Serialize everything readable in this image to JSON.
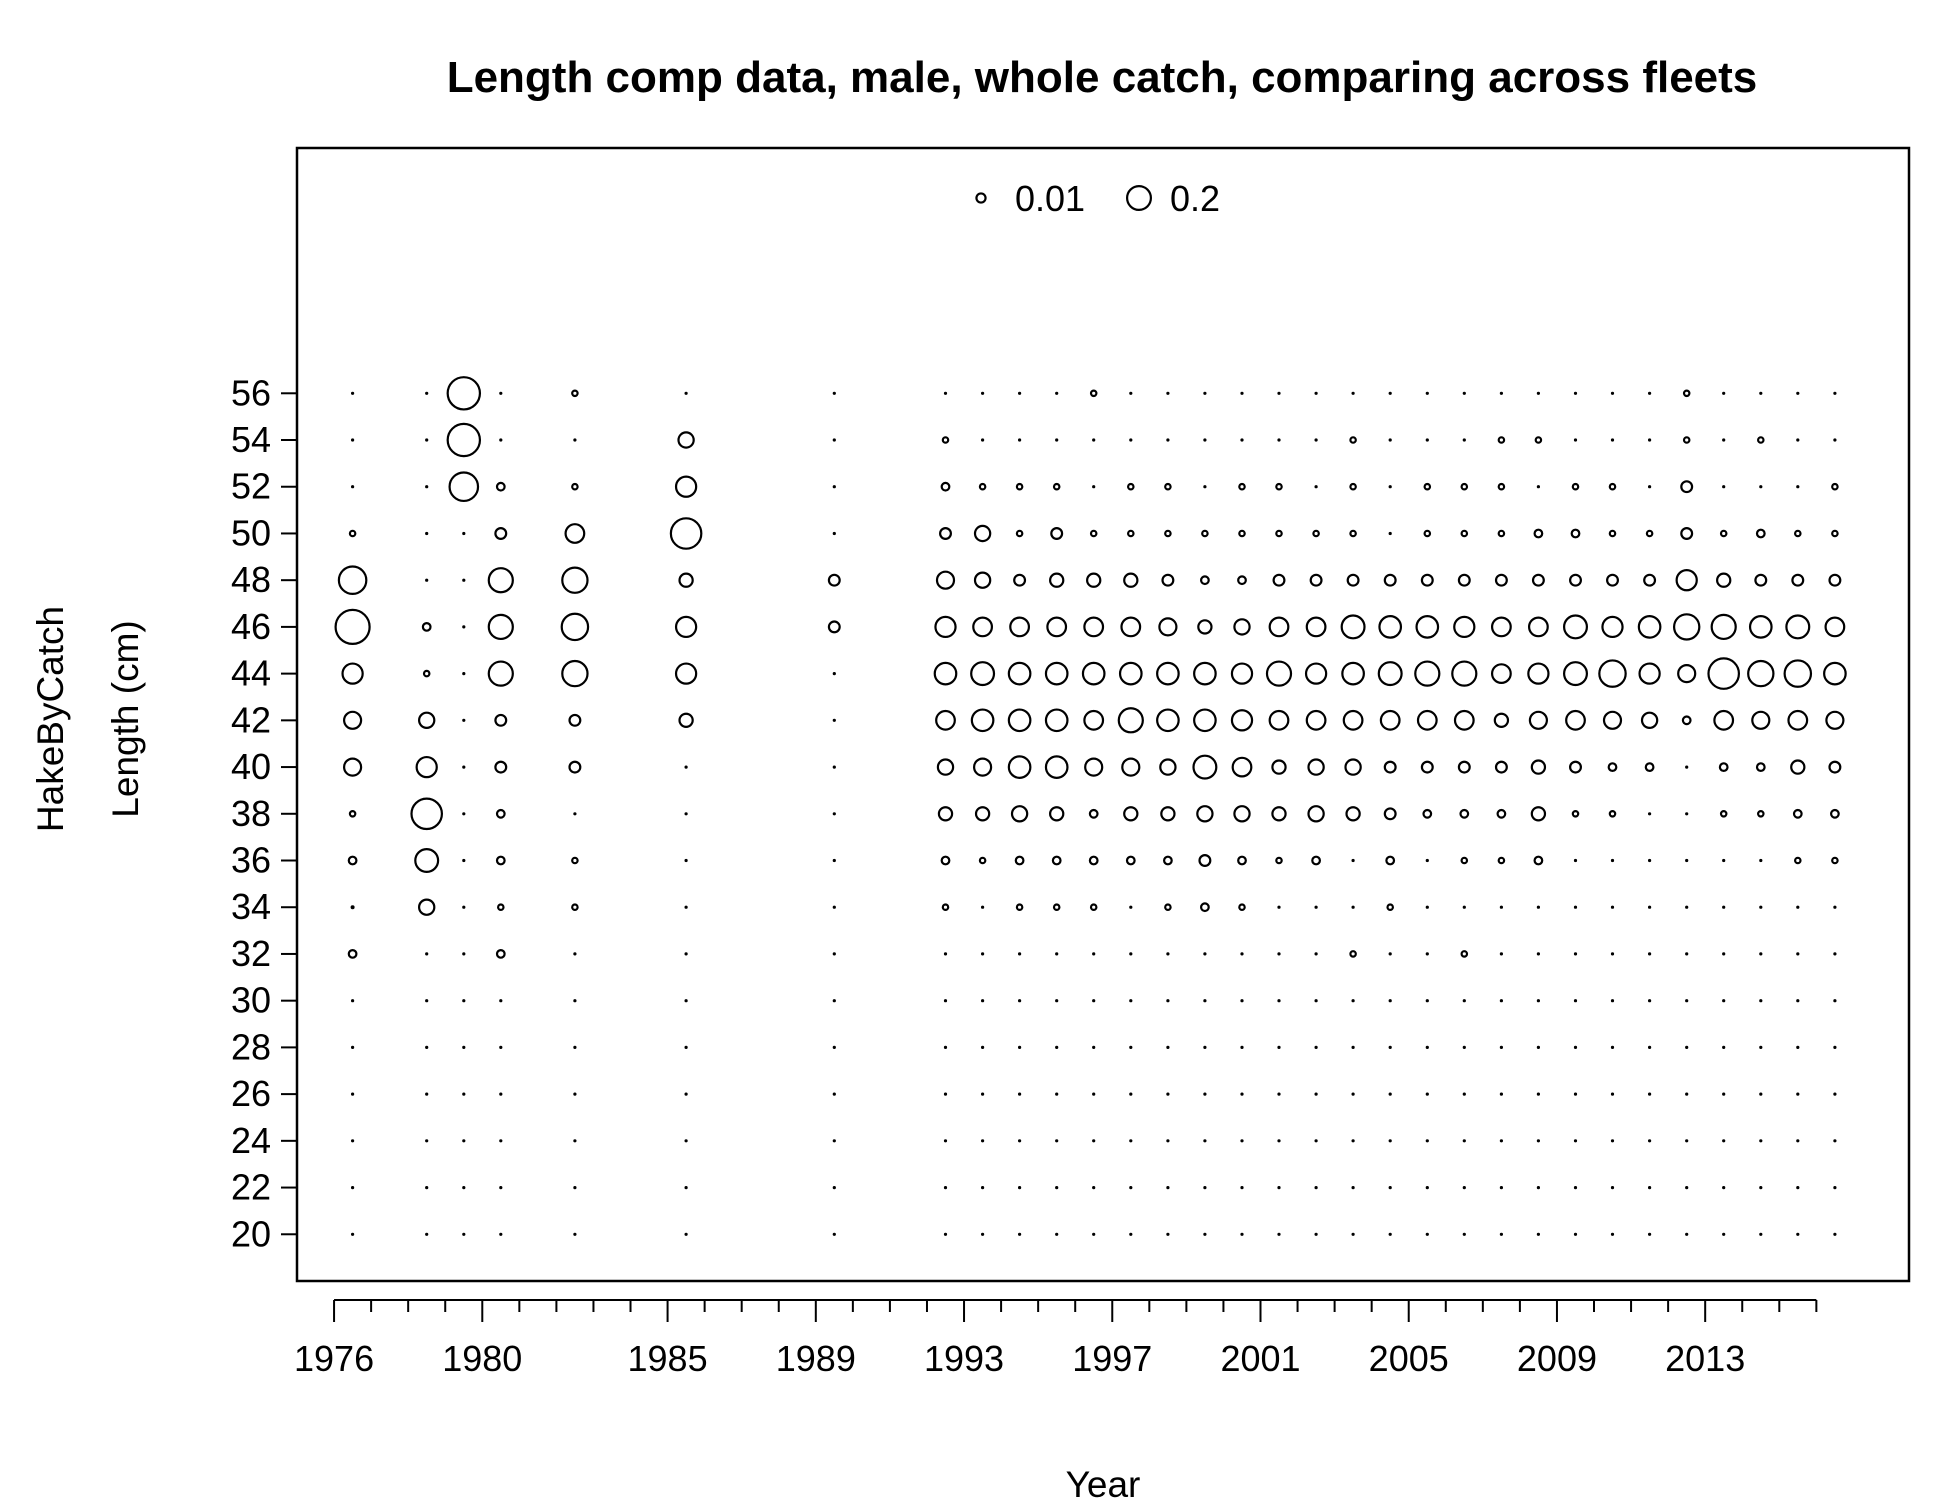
{
  "chart_data": {
    "type": "scatter",
    "subtype": "bubble",
    "title": "Length comp data, male, whole catch, comparing across fleets",
    "xlabel": "Year",
    "ylabel_fleet": "HakeByCatch",
    "ylabel": "Length (cm)",
    "x_tick_labels": [
      "1976",
      "1980",
      "1985",
      "1989",
      "1993",
      "1997",
      "2001",
      "2005",
      "2009",
      "2013"
    ],
    "y_tick_labels": [
      "20",
      "22",
      "24",
      "26",
      "28",
      "30",
      "32",
      "34",
      "36",
      "38",
      "40",
      "42",
      "44",
      "46",
      "48",
      "50",
      "52",
      "54",
      "56"
    ],
    "xlim": [
      1975,
      2018.5
    ],
    "ylim": [
      18,
      66.5
    ],
    "legend": {
      "position": "top-center",
      "entries": [
        "0.01",
        "0.2"
      ],
      "values": [
        0.01,
        0.2
      ]
    },
    "lengths": [
      20,
      22,
      24,
      26,
      28,
      30,
      32,
      34,
      36,
      38,
      40,
      42,
      44,
      46,
      48,
      50,
      52,
      54,
      56
    ],
    "years": [
      1976.5,
      1978.5,
      1979.5,
      1980.5,
      1982.5,
      1985.5,
      1989.5,
      1992.5,
      1993.5,
      1994.5,
      1995.5,
      1996.5,
      1997.5,
      1998.5,
      1999.5,
      2000.5,
      2001.5,
      2002.5,
      2003.5,
      2004.5,
      2005.5,
      2006.5,
      2007.5,
      2008.5,
      2009.5,
      2010.5,
      2011.5,
      2012.5,
      2013.5,
      2014.5,
      2015.5,
      2016.5
    ],
    "proportions": [
      [
        0.001,
        0.001,
        0.001,
        0.001,
        0.001,
        0.001,
        0.01,
        0.002,
        0.01,
        0.005,
        0.05,
        0.05,
        0.07,
        0.2,
        0.13,
        0.005,
        0.001,
        0.001,
        0.001
      ],
      [
        0.001,
        0.001,
        0.001,
        0.001,
        0.001,
        0.001,
        0.001,
        0.04,
        0.09,
        0.16,
        0.07,
        0.04,
        0.005,
        0.01,
        0.001,
        0.001,
        0.001,
        0.001,
        0.001
      ],
      [
        0.001,
        0.001,
        0.001,
        0.001,
        0.001,
        0.001,
        0.001,
        0.001,
        0.001,
        0.001,
        0.001,
        0.001,
        0.001,
        0.001,
        0.001,
        0.001,
        0.14,
        0.18,
        0.18
      ],
      [
        0.001,
        0.001,
        0.001,
        0.001,
        0.001,
        0.001,
        0.01,
        0.005,
        0.01,
        0.01,
        0.02,
        0.02,
        0.1,
        0.1,
        0.1,
        0.02,
        0.01,
        0.001,
        0.001
      ],
      [
        0.001,
        0.001,
        0.001,
        0.001,
        0.001,
        0.001,
        0.001,
        0.005,
        0.005,
        0.001,
        0.02,
        0.02,
        0.11,
        0.12,
        0.11,
        0.06,
        0.005,
        0.001,
        0.005
      ],
      [
        0.001,
        0.001,
        0.001,
        0.001,
        0.001,
        0.001,
        0.001,
        0.001,
        0.001,
        0.001,
        0.001,
        0.03,
        0.07,
        0.07,
        0.03,
        0.16,
        0.07,
        0.04,
        0.001
      ],
      [
        0.001,
        0.001,
        0.001,
        0.001,
        0.001,
        0.001,
        0.001,
        0.001,
        0.001,
        0.001,
        0.001,
        0.001,
        0.001,
        0.02,
        0.02,
        0.001,
        0.001,
        0.001,
        0.001
      ],
      [
        0.001,
        0.001,
        0.001,
        0.001,
        0.001,
        0.001,
        0.001,
        0.005,
        0.01,
        0.03,
        0.04,
        0.06,
        0.08,
        0.07,
        0.05,
        0.02,
        0.01,
        0.005,
        0.001
      ],
      [
        0.001,
        0.001,
        0.001,
        0.001,
        0.001,
        0.001,
        0.001,
        0.001,
        0.005,
        0.03,
        0.05,
        0.08,
        0.09,
        0.06,
        0.04,
        0.04,
        0.005,
        0.001,
        0.001
      ],
      [
        0.001,
        0.001,
        0.001,
        0.001,
        0.001,
        0.001,
        0.001,
        0.005,
        0.01,
        0.04,
        0.08,
        0.08,
        0.08,
        0.06,
        0.02,
        0.005,
        0.005,
        0.001,
        0.001
      ],
      [
        0.001,
        0.001,
        0.001,
        0.001,
        0.001,
        0.001,
        0.001,
        0.005,
        0.01,
        0.03,
        0.08,
        0.08,
        0.08,
        0.06,
        0.03,
        0.02,
        0.005,
        0.001,
        0.001
      ],
      [
        0.001,
        0.001,
        0.001,
        0.001,
        0.001,
        0.001,
        0.001,
        0.005,
        0.01,
        0.01,
        0.05,
        0.06,
        0.08,
        0.06,
        0.03,
        0.005,
        0.001,
        0.001,
        0.005
      ],
      [
        0.001,
        0.001,
        0.001,
        0.001,
        0.001,
        0.001,
        0.001,
        0.001,
        0.01,
        0.03,
        0.05,
        0.1,
        0.08,
        0.06,
        0.03,
        0.005,
        0.005,
        0.001,
        0.001
      ],
      [
        0.001,
        0.001,
        0.001,
        0.001,
        0.001,
        0.001,
        0.001,
        0.005,
        0.01,
        0.03,
        0.04,
        0.08,
        0.08,
        0.05,
        0.02,
        0.005,
        0.005,
        0.001,
        0.001
      ],
      [
        0.001,
        0.001,
        0.001,
        0.001,
        0.001,
        0.001,
        0.001,
        0.01,
        0.02,
        0.04,
        0.09,
        0.08,
        0.08,
        0.03,
        0.01,
        0.005,
        0.001,
        0.001,
        0.001
      ],
      [
        0.001,
        0.001,
        0.001,
        0.001,
        0.001,
        0.001,
        0.001,
        0.005,
        0.01,
        0.04,
        0.06,
        0.07,
        0.07,
        0.04,
        0.01,
        0.005,
        0.005,
        0.001,
        0.001
      ],
      [
        0.001,
        0.001,
        0.001,
        0.001,
        0.001,
        0.001,
        0.001,
        0.001,
        0.005,
        0.03,
        0.03,
        0.06,
        0.1,
        0.06,
        0.02,
        0.005,
        0.005,
        0.001,
        0.001
      ],
      [
        0.001,
        0.001,
        0.001,
        0.001,
        0.001,
        0.001,
        0.001,
        0.001,
        0.01,
        0.04,
        0.04,
        0.06,
        0.07,
        0.06,
        0.02,
        0.005,
        0.001,
        0.001,
        0.001
      ],
      [
        0.001,
        0.001,
        0.001,
        0.001,
        0.001,
        0.001,
        0.005,
        0.001,
        0.001,
        0.03,
        0.04,
        0.06,
        0.08,
        0.09,
        0.02,
        0.005,
        0.005,
        0.005,
        0.001
      ],
      [
        0.001,
        0.001,
        0.001,
        0.001,
        0.001,
        0.001,
        0.001,
        0.005,
        0.01,
        0.02,
        0.02,
        0.06,
        0.09,
        0.08,
        0.02,
        0.001,
        0.001,
        0.001,
        0.001
      ],
      [
        0.001,
        0.001,
        0.001,
        0.001,
        0.001,
        0.001,
        0.001,
        0.001,
        0.001,
        0.01,
        0.02,
        0.06,
        0.1,
        0.08,
        0.02,
        0.005,
        0.005,
        0.001,
        0.001
      ],
      [
        0.001,
        0.001,
        0.001,
        0.001,
        0.001,
        0.001,
        0.005,
        0.001,
        0.005,
        0.01,
        0.02,
        0.06,
        0.1,
        0.07,
        0.02,
        0.005,
        0.005,
        0.001,
        0.001
      ],
      [
        0.001,
        0.001,
        0.001,
        0.001,
        0.001,
        0.001,
        0.001,
        0.001,
        0.005,
        0.01,
        0.02,
        0.03,
        0.06,
        0.06,
        0.02,
        0.005,
        0.005,
        0.005,
        0.001
      ],
      [
        0.001,
        0.001,
        0.001,
        0.001,
        0.001,
        0.001,
        0.001,
        0.001,
        0.01,
        0.03,
        0.03,
        0.05,
        0.07,
        0.06,
        0.02,
        0.01,
        0.001,
        0.005,
        0.001
      ],
      [
        0.001,
        0.001,
        0.001,
        0.001,
        0.001,
        0.001,
        0.001,
        0.001,
        0.001,
        0.005,
        0.02,
        0.06,
        0.09,
        0.09,
        0.02,
        0.01,
        0.005,
        0.001,
        0.001
      ],
      [
        0.001,
        0.001,
        0.001,
        0.001,
        0.001,
        0.001,
        0.001,
        0.001,
        0.001,
        0.005,
        0.01,
        0.05,
        0.12,
        0.07,
        0.02,
        0.005,
        0.005,
        0.001,
        0.001
      ],
      [
        0.001,
        0.001,
        0.001,
        0.001,
        0.001,
        0.001,
        0.001,
        0.001,
        0.001,
        0.001,
        0.01,
        0.04,
        0.07,
        0.08,
        0.02,
        0.005,
        0.001,
        0.001,
        0.001
      ],
      [
        0.001,
        0.001,
        0.001,
        0.001,
        0.001,
        0.001,
        0.001,
        0.001,
        0.001,
        0.001,
        0.001,
        0.01,
        0.05,
        0.11,
        0.07,
        0.02,
        0.02,
        0.005,
        0.005
      ],
      [
        0.001,
        0.001,
        0.001,
        0.001,
        0.001,
        0.001,
        0.001,
        0.001,
        0.001,
        0.005,
        0.01,
        0.06,
        0.16,
        0.1,
        0.03,
        0.005,
        0.001,
        0.001,
        0.001
      ],
      [
        0.001,
        0.001,
        0.001,
        0.001,
        0.001,
        0.001,
        0.001,
        0.001,
        0.001,
        0.005,
        0.01,
        0.05,
        0.11,
        0.08,
        0.02,
        0.01,
        0.001,
        0.005,
        0.001
      ],
      [
        0.001,
        0.001,
        0.001,
        0.001,
        0.001,
        0.001,
        0.001,
        0.001,
        0.005,
        0.01,
        0.03,
        0.06,
        0.12,
        0.09,
        0.02,
        0.005,
        0.001,
        0.001,
        0.001
      ],
      [
        0.001,
        0.001,
        0.001,
        0.001,
        0.001,
        0.001,
        0.001,
        0.001,
        0.005,
        0.01,
        0.02,
        0.05,
        0.08,
        0.06,
        0.02,
        0.005,
        0.005,
        0.001,
        0.001
      ]
    ]
  }
}
